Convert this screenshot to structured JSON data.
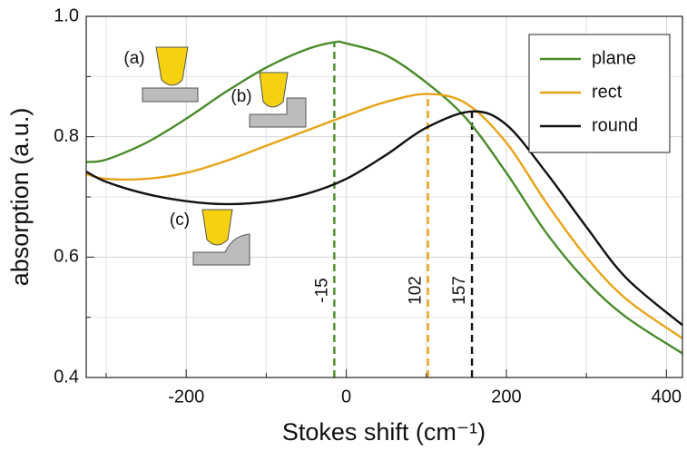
{
  "chart_data": {
    "type": "line",
    "x_label": "Stokes shift (cm⁻¹)",
    "y_label": "absorption (a.u.)",
    "xlim": [
      -325,
      420
    ],
    "ylim": [
      0.4,
      1.0
    ],
    "xticks": [
      -200,
      0,
      200,
      400
    ],
    "yticks": [
      0.4,
      0.6,
      0.8,
      {
        "value": 1.0,
        "label": "1.0"
      }
    ],
    "minor_xticks": [
      -300,
      -100,
      100,
      300
    ],
    "minor_yticks": [
      0.5,
      0.7,
      0.9
    ],
    "grid": true,
    "legend": "upper right",
    "series": [
      {
        "name": "plane",
        "color": "#4a8c2a",
        "x": [
          -325,
          -300,
          -250,
          -200,
          -150,
          -100,
          -50,
          -15,
          0,
          50,
          100,
          150,
          200,
          250,
          300,
          350,
          420
        ],
        "values": [
          0.758,
          0.762,
          0.79,
          0.83,
          0.875,
          0.915,
          0.945,
          0.957,
          0.955,
          0.935,
          0.89,
          0.83,
          0.74,
          0.64,
          0.56,
          0.5,
          0.44
        ]
      },
      {
        "name": "rect",
        "color": "#e8a317",
        "x": [
          -325,
          -300,
          -250,
          -200,
          -150,
          -100,
          -50,
          0,
          50,
          102,
          150,
          200,
          250,
          300,
          350,
          420
        ],
        "values": [
          0.738,
          0.73,
          0.73,
          0.74,
          0.76,
          0.785,
          0.81,
          0.835,
          0.858,
          0.871,
          0.855,
          0.79,
          0.69,
          0.6,
          0.53,
          0.465
        ]
      },
      {
        "name": "round",
        "color": "#111111",
        "x": [
          -325,
          -300,
          -250,
          -200,
          -150,
          -100,
          -50,
          0,
          50,
          100,
          157,
          200,
          250,
          300,
          350,
          420
        ],
        "values": [
          0.742,
          0.725,
          0.705,
          0.693,
          0.688,
          0.692,
          0.705,
          0.73,
          0.77,
          0.815,
          0.842,
          0.82,
          0.74,
          0.65,
          0.565,
          0.487
        ]
      }
    ],
    "markers": [
      {
        "x": -15,
        "y": 0.957,
        "color": "#4a8c2a"
      },
      {
        "x": 102,
        "y": 0.871,
        "color": "#e8a317"
      },
      {
        "x": 157,
        "y": 0.842,
        "color": "#111111"
      }
    ],
    "insets": [
      "(a)",
      "(b)",
      "(c)"
    ]
  }
}
